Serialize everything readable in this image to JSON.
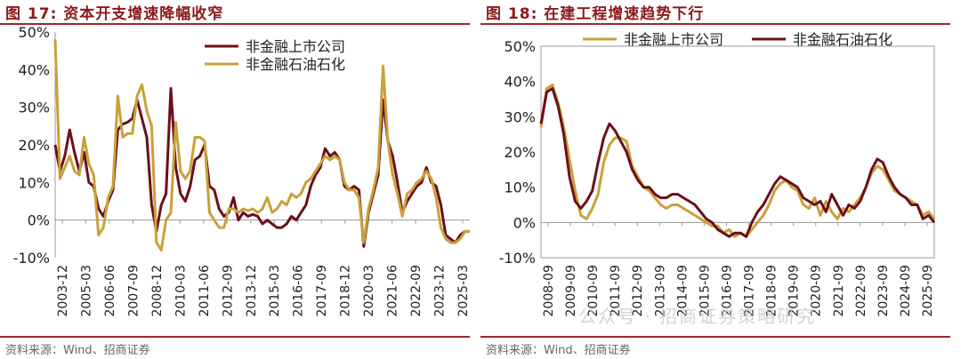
{
  "chart_data": [
    {
      "type": "line",
      "title": "图 17: 资本开支增速降幅收窄",
      "source": "资料来源：Wind、招商证券",
      "ylim": [
        -10,
        50
      ],
      "yticks": [
        "-10%",
        "0%",
        "10%",
        "20%",
        "30%",
        "40%",
        "50%"
      ],
      "xticks": [
        "2003-12",
        "2005-03",
        "2006-06",
        "2007-09",
        "2008-12",
        "2010-03",
        "2011-06",
        "2012-09",
        "2013-12",
        "2015-03",
        "2016-06",
        "2017-09",
        "2018-12",
        "2020-03",
        "2021-06",
        "2022-09",
        "2023-12",
        "2025-03"
      ],
      "legend_position": "top-center",
      "series": [
        {
          "name": "非金融上市公司",
          "color": "#6b0f1a",
          "values": [
            20,
            13,
            17,
            24,
            18,
            13,
            18,
            10,
            9,
            3,
            1,
            5,
            8,
            24,
            25.5,
            26,
            27,
            32,
            27,
            22,
            4,
            -3,
            4,
            7,
            35,
            14,
            7,
            5,
            9,
            16,
            17,
            20,
            9,
            8,
            3,
            1,
            2,
            6,
            0,
            2,
            1,
            1.5,
            1,
            -1,
            0,
            -1,
            -2,
            -2,
            -1,
            1,
            0,
            2,
            4,
            9,
            12,
            14,
            19,
            17,
            18,
            16,
            9,
            8,
            9,
            8,
            -7,
            2,
            7,
            12,
            32,
            21,
            17,
            10,
            2,
            5,
            7,
            9,
            10,
            14,
            10,
            9,
            4,
            -4,
            -5,
            -6,
            -4,
            -3,
            -3
          ]
        },
        {
          "name": "非金融石油石化",
          "color": "#c9a13a",
          "values": [
            48,
            11,
            14,
            17,
            13,
            12,
            22,
            15,
            12,
            -4,
            -2,
            6,
            9,
            33,
            22,
            23,
            23,
            33,
            36,
            29,
            25,
            -6,
            -8,
            0,
            2,
            26,
            13,
            11,
            13,
            22,
            22,
            21,
            2,
            0,
            -2,
            -2,
            3,
            3,
            2,
            3,
            2.5,
            3,
            2,
            3,
            6,
            2,
            3,
            5,
            4,
            7,
            6,
            7,
            10,
            11,
            13,
            15,
            17,
            16,
            17,
            16,
            10,
            8,
            8,
            6,
            -6,
            3,
            8,
            14,
            41,
            21,
            12,
            7,
            1,
            7,
            8,
            10,
            11,
            13,
            11,
            6,
            -2,
            -5,
            -6,
            -6,
            -5,
            -3,
            -3
          ]
        }
      ]
    },
    {
      "type": "line",
      "title": "图 18: 在建工程增速趋势下行",
      "source": "资料来源：Wind、招商证券",
      "ylim": [
        -10,
        50
      ],
      "yticks": [
        "-10%",
        "0%",
        "10%",
        "20%",
        "30%",
        "40%",
        "50%"
      ],
      "xticks": [
        "2008-09",
        "2009-09",
        "2010-09",
        "2011-09",
        "2012-09",
        "2013-09",
        "2014-09",
        "2015-09",
        "2016-09",
        "2017-09",
        "2018-09",
        "2019-09",
        "2020-09",
        "2021-09",
        "2022-09",
        "2023-09",
        "2024-09",
        "2025-09"
      ],
      "legend_position": "top",
      "series": [
        {
          "name": "非金融上市公司",
          "color": "#c9a13a",
          "values": [
            27,
            38,
            39,
            34,
            27,
            18,
            9,
            2,
            1,
            4,
            8,
            17,
            22,
            24,
            24,
            23,
            16,
            13,
            10,
            9,
            7,
            5,
            4,
            5,
            5,
            4,
            3,
            2,
            1,
            0,
            -1,
            -1,
            -3,
            -2,
            -4,
            -3,
            -4,
            -2,
            0,
            2,
            5,
            9,
            11,
            12,
            10,
            9,
            5,
            4,
            7,
            2,
            6,
            3,
            1,
            4,
            3,
            5,
            7,
            10,
            14,
            16,
            15,
            12,
            9,
            8,
            7,
            6,
            5,
            2,
            3,
            1
          ]
        },
        {
          "name": "非金融石油石化",
          "color": "#6b0f1a",
          "values": [
            28,
            37,
            38,
            33,
            25,
            13,
            6,
            4,
            6,
            9,
            17,
            24,
            28,
            26,
            23,
            20,
            15,
            12,
            10,
            10,
            8,
            7,
            7,
            8,
            8,
            7,
            6,
            5,
            3,
            1,
            0,
            -2,
            -3,
            -4,
            -3,
            -3,
            -4,
            0,
            3,
            5,
            8,
            11,
            13,
            12,
            11,
            10,
            7,
            6,
            5,
            6,
            3,
            8,
            5,
            2,
            5,
            4,
            6,
            10,
            15,
            18,
            17,
            13,
            10,
            8,
            7,
            5,
            5,
            1,
            2,
            0
          ]
        }
      ]
    }
  ],
  "watermark": "公众号 · 招商证券策略研究"
}
